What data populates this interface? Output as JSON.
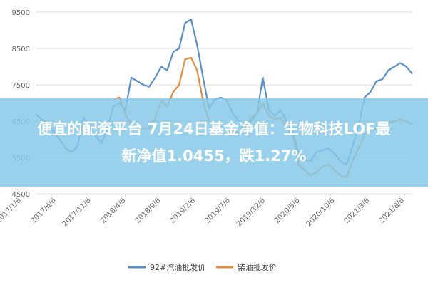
{
  "banner": {
    "line1": "便宜的配资平台 7月24日基金净值：生物科技LOF最",
    "line2": "新净值1.0455，跌1.27%"
  },
  "chart_data": {
    "type": "line",
    "title": "",
    "xlabel": "",
    "ylabel": "",
    "ylim": [
      4500,
      9500
    ],
    "yticks": [
      "9500",
      "8500",
      "7500",
      "6500",
      "5500",
      "4500"
    ],
    "xticks": [
      "2017/1/6",
      "2017/6/6",
      "2017/11/6",
      "2018/4/6",
      "2018/9/6",
      "2019/2/6",
      "2019/7/6",
      "2019/12/6",
      "2020/5/6",
      "2020/10/6",
      "2021/3/6",
      "2021/8/6"
    ],
    "grid": true,
    "legend_position": "bottom",
    "series": [
      {
        "name": "92#汽油批发价",
        "color": "#5b8fc7",
        "values": [
          6700,
          6550,
          6450,
          6200,
          6000,
          5750,
          5650,
          5800,
          6600,
          6350,
          6100,
          5900,
          6300,
          6900,
          7000,
          6800,
          7700,
          7600,
          7500,
          7450,
          7700,
          8000,
          7900,
          8400,
          8500,
          9200,
          9300,
          8600,
          7700,
          6850,
          7100,
          7150,
          7050,
          6700,
          6500,
          6250,
          6500,
          6700,
          7700,
          6800,
          6650,
          6800,
          6500,
          6200,
          5600,
          5450,
          5400,
          5650,
          5700,
          5750,
          5600,
          5400,
          5300,
          5800,
          6350,
          7150,
          7300,
          7600,
          7650,
          7900,
          8000,
          8100,
          8000,
          7800
        ]
      },
      {
        "name": "柴油批发价",
        "color": "#e28b3f",
        "values": [
          null,
          null,
          null,
          null,
          null,
          null,
          null,
          null,
          null,
          null,
          null,
          null,
          null,
          7100,
          7150,
          6700,
          6400,
          6300,
          6300,
          6300,
          6600,
          7050,
          6900,
          7300,
          7500,
          8200,
          8250,
          7900,
          7050,
          6500,
          6350,
          6200,
          6150,
          6250,
          6150,
          6300,
          6600,
          6700,
          7000,
          6650,
          6550,
          6600,
          6300,
          6100,
          5300,
          5150,
          5000,
          5100,
          5250,
          5300,
          5150,
          5000,
          4950,
          5400,
          5750,
          6150,
          6250,
          6300,
          6350,
          6450,
          6500,
          6550,
          6500,
          6400
        ]
      }
    ]
  }
}
